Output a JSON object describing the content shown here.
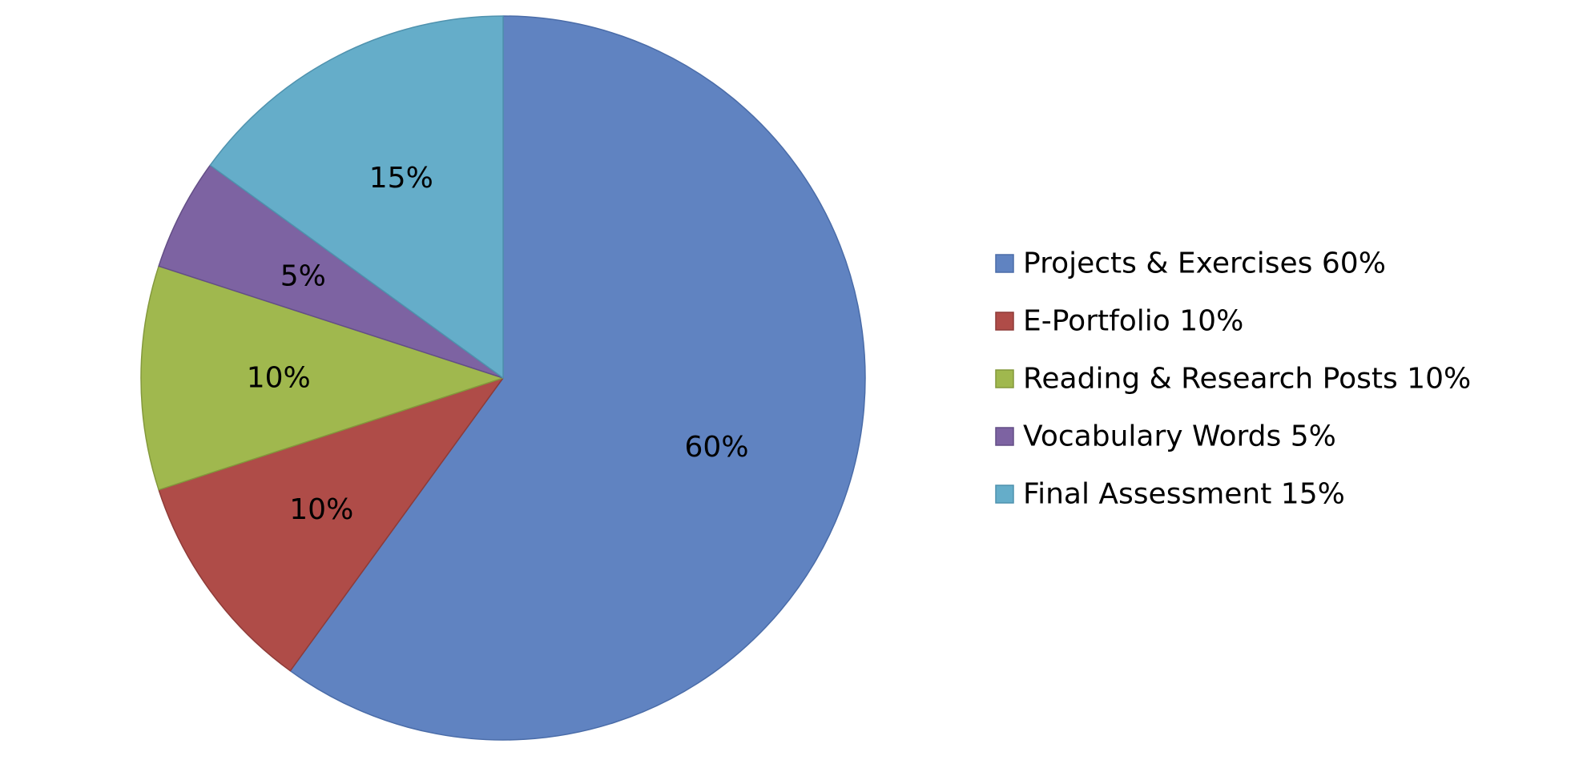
{
  "chart_data": {
    "type": "pie",
    "categories": [
      "Projects & Exercises 60%",
      "E-Portfolio 10%",
      "Reading & Research Posts 10%",
      "Vocabulary Words 5%",
      "Final Assessment 15%"
    ],
    "values": [
      60,
      10,
      10,
      5,
      15
    ],
    "data_labels": [
      "60%",
      "10%",
      "10%",
      "5%",
      "15%"
    ],
    "colors": [
      "#6083C1",
      "#AF4C48",
      "#A0B84E",
      "#7D63A2",
      "#65ADC9"
    ],
    "edge_colors": [
      "#4A6CA8",
      "#8E3B38",
      "#84993C",
      "#634E86",
      "#4F92AE"
    ],
    "start_angle_deg": 0,
    "direction": "clockwise",
    "legend_position": "right"
  }
}
